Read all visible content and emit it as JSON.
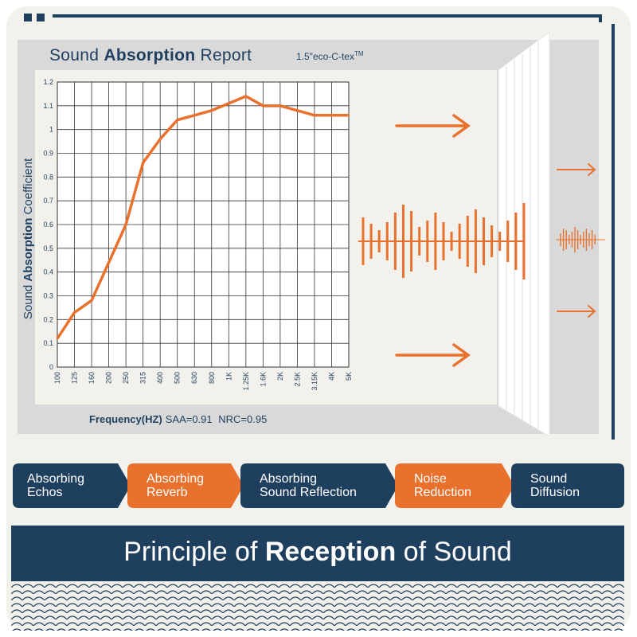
{
  "report": {
    "title_prefix": "Sound ",
    "title_bold": "Absorption",
    "title_suffix": " Report",
    "product": "1.5\"eco-C-tex",
    "product_tm": "TM"
  },
  "chart_data": {
    "type": "line",
    "title": "Sound Absorption Report",
    "ylabel": "Sound Absorption Coefficient",
    "xlabel": "Frequency(HZ)",
    "categories": [
      "100",
      "125",
      "160",
      "200",
      "250",
      "315",
      "400",
      "500",
      "630",
      "800",
      "1K",
      "1.25K",
      "1.6K",
      "2K",
      "2.5K",
      "3.15K",
      "4K",
      "5K"
    ],
    "series": [
      {
        "values": [
          0.12,
          0.23,
          0.28,
          0.44,
          0.6,
          0.86,
          0.96,
          1.04,
          1.06,
          1.08,
          1.11,
          1.14,
          1.1,
          1.1,
          1.08,
          1.06,
          1.06,
          1.06
        ]
      }
    ],
    "yticks": [
      "0",
      "0.1",
      "0.2",
      "0.3",
      "0.4",
      "0.5",
      "0.6",
      "0.7",
      "0.8",
      "0.9",
      "1",
      "1.1",
      "1.2"
    ],
    "ylim": [
      0,
      1.2
    ],
    "grid": true,
    "line_color": "#e8722d",
    "annotations": {
      "saa": "SAA=0.91",
      "nrc": "NRC=0.95"
    }
  },
  "axis": {
    "y_label_prefix": "Sound ",
    "y_label_bold": "Absorption",
    "y_label_suffix": " Coefficient"
  },
  "categories_band": [
    {
      "label": "Absorbing\nEchos",
      "color": "#1f3f5f"
    },
    {
      "label": "Absorbing\nReverb",
      "color": "#e8722d"
    },
    {
      "label": "Absorbing\nSound Reflection",
      "color": "#1f3f5f"
    },
    {
      "label": "Noise\nReduction",
      "color": "#e8722d"
    },
    {
      "label": "Sound\nDiffusion",
      "color": "#1f3f5f"
    }
  ],
  "footer": {
    "prefix": "Principle of ",
    "bold": "Reception",
    "suffix": " of Sound"
  },
  "colors": {
    "navy": "#1f3f5f",
    "orange": "#e8722d",
    "background": "#f3f1ec",
    "panel": "#d9d9d9"
  },
  "icons": [
    "arrow-right-icon",
    "waveform-icon",
    "acoustic-panel-icon"
  ]
}
